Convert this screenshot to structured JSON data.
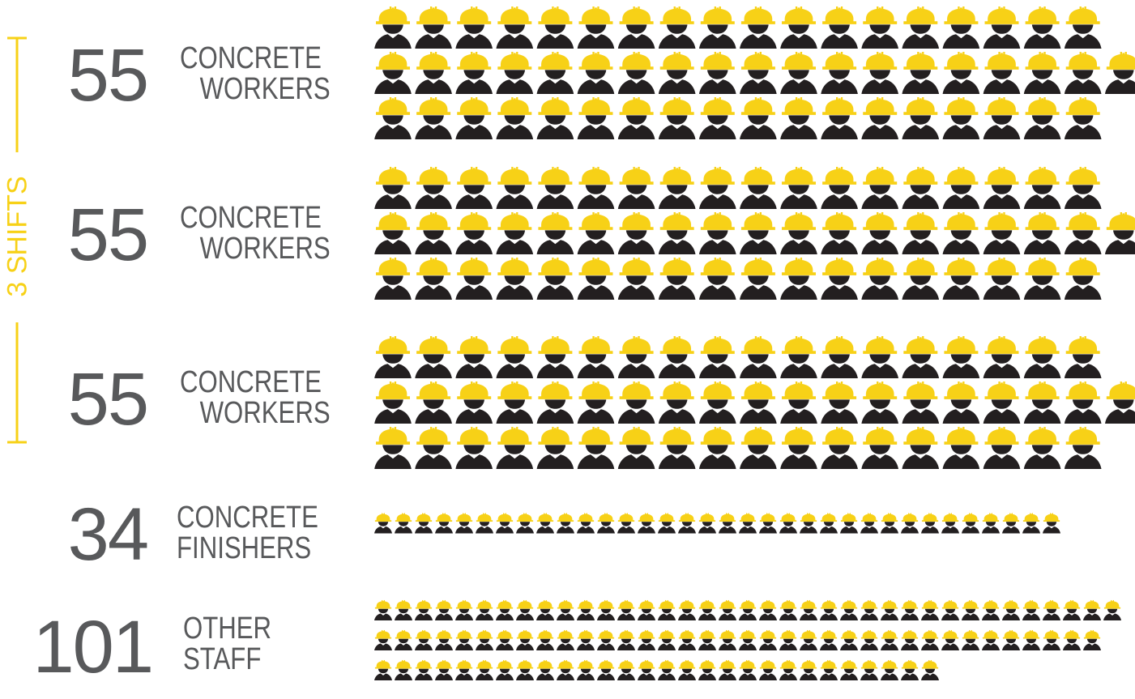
{
  "shift_label": "3 SHIFTS",
  "colors": {
    "helmet": "#f7d117",
    "body": "#231f20",
    "text": "#58595b",
    "accent": "#f7d117"
  },
  "icon": "construction-worker-icon",
  "chart_data": {
    "type": "pictogram",
    "title": "",
    "series": [
      {
        "value": "55",
        "label_line1": "CONCRETE",
        "label_line2": "WORKERS",
        "count": 55
      },
      {
        "value": "55",
        "label_line1": "CONCRETE",
        "label_line2": "WORKERS",
        "count": 55
      },
      {
        "value": "55",
        "label_line1": "CONCRETE",
        "label_line2": "WORKERS",
        "count": 55
      },
      {
        "value": "34",
        "label_line1": "CONCRETE",
        "label_line2": "FINISHERS",
        "count": 34
      },
      {
        "value": "101",
        "label_line1": "OTHER",
        "label_line2": "STAFF",
        "count": 101
      }
    ]
  }
}
